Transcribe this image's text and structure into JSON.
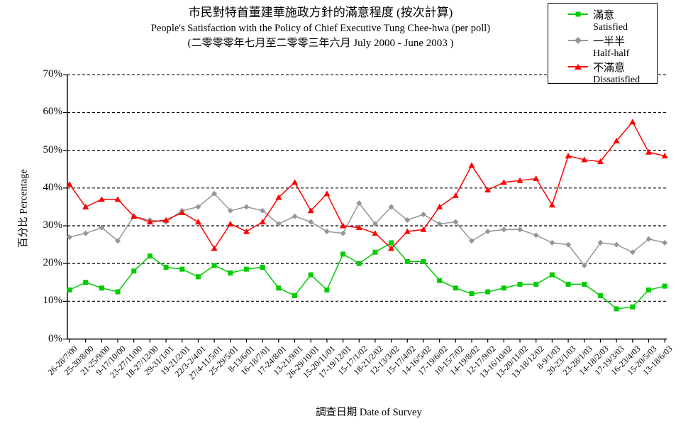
{
  "title": {
    "line1_zh": "市民對特首董建華施政方針的滿意程度 (按次計算)",
    "line2_en": "People's Satisfaction with the Policy of Chief Executive Tung Chee-hwa (per poll)",
    "line3_range": "(二零零零年七月至二零零三年六月 July 2000 - June 2003 )"
  },
  "axes": {
    "y_title": "百分比 Percentage",
    "x_title": "調查日期 Date of Survey",
    "y_tick_labels": [
      "0%",
      "10%",
      "20%",
      "30%",
      "40%",
      "50%",
      "60%",
      "70%"
    ]
  },
  "legend": {
    "items": [
      {
        "label_zh": "滿意",
        "label_en": "Satisfied",
        "color": "#00cc00",
        "marker": "square"
      },
      {
        "label_zh": "一半半",
        "label_en": "Half-half",
        "color": "#969696",
        "marker": "diamond"
      },
      {
        "label_zh": "不滿意",
        "label_en": "Dissatisfied",
        "color": "#ff0000",
        "marker": "triangle"
      }
    ]
  },
  "chart_data": {
    "type": "line",
    "title": "市民對特首董建華施政方針的滿意程度 (按次計算) / People's Satisfaction with the Policy of Chief Executive Tung Chee-hwa (per poll) / (二零零零年七月至二零零三年六月 July 2000 - June 2003 )",
    "xlabel": "調查日期 Date of Survey",
    "ylabel": "百分比 Percentage",
    "ylim": [
      0,
      70
    ],
    "y_tick_step": 10,
    "grid": "horizontal-dashed",
    "legend_position": "top-right",
    "categories": [
      "26-28/7/00",
      "25-30/8/00",
      "21-25/9/00",
      "9-17/10/00",
      "23-27/11/00",
      "18-27/12/00",
      "29-31/1/01",
      "19-21/2/01",
      "22/3-2/4/01",
      "27/4-11/5/01",
      "25-29/5/01",
      "8-13/6/01",
      "16-18/7/01",
      "17-24/8/01",
      "13-21/9/01",
      "26-29/10/01",
      "15-20/11/01",
      "17-19/12/01",
      "15-17/1/02",
      "18-21/2/02",
      "12-13/3/02",
      "15-17/4/02",
      "14-16/5/02",
      "17-19/6/02",
      "10-15/7/02",
      "14-19/8/02",
      "12-17/9/02",
      "13-16/10/02",
      "13-20/11/02",
      "13-18/12/02",
      "8-9/1/03",
      "20-23/1/03",
      "23-28/1/03",
      "14-18/2/03",
      "17-19/3/03",
      "16-23/4/03",
      "15-20/5/03",
      "13-18/6/03"
    ],
    "series": [
      {
        "name": "滿意 Satisfied",
        "color": "#00cc00",
        "marker": "square",
        "values": [
          13,
          15,
          13.5,
          12.5,
          18,
          22,
          19,
          18.5,
          16.5,
          19.5,
          17.5,
          18.5,
          19,
          13.5,
          11.5,
          17,
          13,
          22.5,
          20,
          23,
          25.5,
          20.5,
          20.5,
          15.5,
          13.5,
          12,
          12.5,
          13.5,
          14.5,
          14.5,
          17,
          14.5,
          14.5,
          11.5,
          8,
          8.5,
          13,
          14
        ]
      },
      {
        "name": "一半半 Half-half",
        "color": "#969696",
        "marker": "diamond",
        "values": [
          27,
          28,
          29.5,
          26,
          32.5,
          31.5,
          31,
          34,
          35,
          38.5,
          34,
          35,
          34,
          30.5,
          32.5,
          31,
          28.5,
          28,
          36,
          30.5,
          35,
          31.5,
          33,
          30.5,
          31,
          26,
          28.5,
          29,
          29,
          27.5,
          25.5,
          25,
          19.5,
          25.5,
          25,
          23,
          26.5,
          25.5
        ]
      },
      {
        "name": "不滿意 Dissatisfied",
        "color": "#ff0000",
        "marker": "triangle",
        "values": [
          41,
          35,
          37,
          37,
          32.5,
          31,
          31.5,
          33.5,
          31,
          24,
          30.5,
          28.5,
          31,
          37.5,
          41.5,
          34,
          38.5,
          30,
          29.5,
          28,
          24,
          28.5,
          29,
          35,
          38,
          46,
          39.5,
          41.5,
          42,
          42.5,
          35.5,
          48.5,
          47.5,
          47,
          52.5,
          57.5,
          49.5,
          48.5
        ]
      }
    ]
  }
}
